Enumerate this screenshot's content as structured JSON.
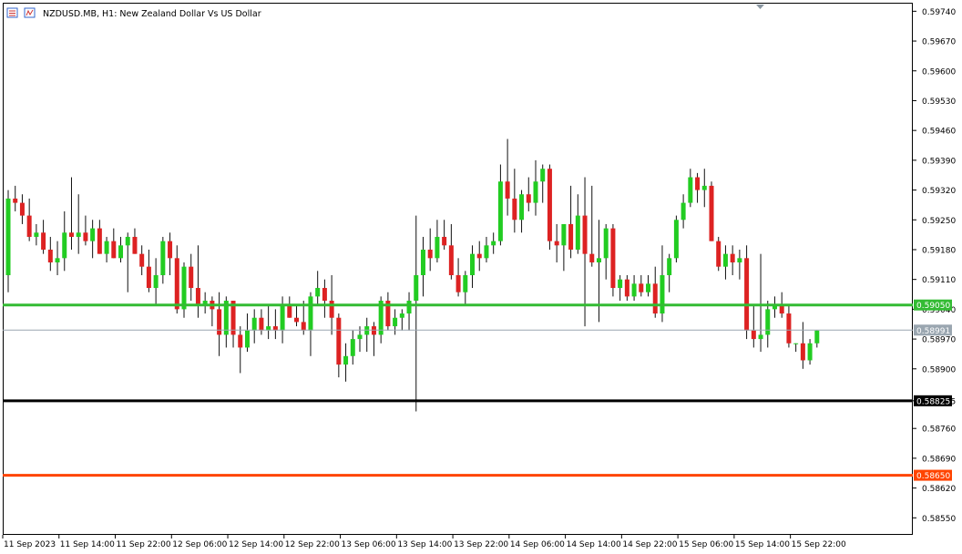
{
  "header": {
    "title": "NZDUSD.MB, H1:  New Zealand Dollar Vs US Dollar",
    "icon": "chart-window-icon"
  },
  "colors": {
    "bull": "#22cc22",
    "bear": "#dd2222",
    "wick": "#111111",
    "grid_border": "#000000",
    "current_price_line": "#9aa6b0",
    "line_green": "#33bb33",
    "line_black": "#000000",
    "line_orange": "#ff4400"
  },
  "chart_data": {
    "type": "candlestick",
    "title": "NZDUSD.MB, H1:  New Zealand Dollar Vs US Dollar",
    "ylim": [
      0.5851,
      0.5976
    ],
    "y_ticks": [
      "0.59740",
      "0.59670",
      "0.59600",
      "0.59530",
      "0.59460",
      "0.59390",
      "0.59320",
      "0.59250",
      "0.59180",
      "0.59110",
      "0.59040",
      "0.58970",
      "0.58900",
      "0.58825",
      "0.58760",
      "0.58690",
      "0.58620",
      "0.58550"
    ],
    "x_labels": [
      "11 Sep 2023",
      "11 Sep 14:00",
      "11 Sep 22:00",
      "12 Sep 06:00",
      "12 Sep 14:00",
      "12 Sep 22:00",
      "13 Sep 06:00",
      "13 Sep 14:00",
      "13 Sep 22:00",
      "14 Sep 06:00",
      "14 Sep 14:00",
      "14 Sep 22:00",
      "15 Sep 06:00",
      "15 Sep 14:00",
      "15 Sep 22:00"
    ],
    "x_label_every": 8,
    "horizontal_lines": [
      {
        "price": 0.5905,
        "label": "0.59050",
        "color": "#33bb33",
        "width": 3
      },
      {
        "price": 0.58991,
        "label": "0.58991",
        "color": "#9aa6b0",
        "width": 1
      },
      {
        "price": 0.58825,
        "label": "0.58825",
        "color": "#000000",
        "width": 3
      },
      {
        "price": 0.5865,
        "label": "0.58650",
        "color": "#ff4400",
        "width": 3
      }
    ],
    "candles": [
      [
        0.5912,
        0.5932,
        0.5908,
        0.593
      ],
      [
        0.593,
        0.5933,
        0.5927,
        0.5929
      ],
      [
        0.5929,
        0.5931,
        0.5924,
        0.5926
      ],
      [
        0.5926,
        0.593,
        0.592,
        0.5921
      ],
      [
        0.5921,
        0.5924,
        0.5919,
        0.5922
      ],
      [
        0.5922,
        0.5925,
        0.5917,
        0.5918
      ],
      [
        0.5918,
        0.5921,
        0.5913,
        0.5915
      ],
      [
        0.5915,
        0.592,
        0.5912,
        0.5916
      ],
      [
        0.5916,
        0.5927,
        0.5913,
        0.5922
      ],
      [
        0.5922,
        0.5935,
        0.5918,
        0.5921
      ],
      [
        0.5921,
        0.5931,
        0.5917,
        0.5922
      ],
      [
        0.5922,
        0.5926,
        0.5919,
        0.592
      ],
      [
        0.592,
        0.5925,
        0.5916,
        0.5923
      ],
      [
        0.5923,
        0.5925,
        0.5917,
        0.5917
      ],
      [
        0.5917,
        0.5921,
        0.5915,
        0.592
      ],
      [
        0.592,
        0.5923,
        0.5916,
        0.5916
      ],
      [
        0.5916,
        0.5921,
        0.5915,
        0.5919
      ],
      [
        0.5919,
        0.5922,
        0.5908,
        0.5921
      ],
      [
        0.5921,
        0.5923,
        0.5917,
        0.5917
      ],
      [
        0.5917,
        0.5919,
        0.5912,
        0.5914
      ],
      [
        0.5914,
        0.5918,
        0.5908,
        0.5909
      ],
      [
        0.5909,
        0.5916,
        0.5905,
        0.5912
      ],
      [
        0.5912,
        0.5921,
        0.591,
        0.592
      ],
      [
        0.592,
        0.5922,
        0.5912,
        0.5916
      ],
      [
        0.5916,
        0.5919,
        0.5903,
        0.5904
      ],
      [
        0.5904,
        0.5915,
        0.5902,
        0.5914
      ],
      [
        0.5914,
        0.5917,
        0.5906,
        0.5909
      ],
      [
        0.5909,
        0.5919,
        0.5902,
        0.5905
      ],
      [
        0.5905,
        0.5908,
        0.5903,
        0.5906
      ],
      [
        0.5906,
        0.5907,
        0.59,
        0.5904
      ],
      [
        0.5904,
        0.5908,
        0.5893,
        0.5898
      ],
      [
        0.5898,
        0.5907,
        0.5895,
        0.5906
      ],
      [
        0.5906,
        0.5906,
        0.5895,
        0.5898
      ],
      [
        0.5898,
        0.59,
        0.5889,
        0.5895
      ],
      [
        0.5895,
        0.5903,
        0.5894,
        0.5899
      ],
      [
        0.5899,
        0.5904,
        0.5896,
        0.5902
      ],
      [
        0.5902,
        0.5904,
        0.5898,
        0.5899
      ],
      [
        0.5899,
        0.5905,
        0.5897,
        0.59
      ],
      [
        0.59,
        0.5904,
        0.5897,
        0.5899
      ],
      [
        0.5899,
        0.5907,
        0.5896,
        0.5905
      ],
      [
        0.5905,
        0.5907,
        0.5902,
        0.5902
      ],
      [
        0.5902,
        0.5905,
        0.59,
        0.5901
      ],
      [
        0.5901,
        0.5906,
        0.5898,
        0.5899
      ],
      [
        0.5899,
        0.5908,
        0.5893,
        0.5907
      ],
      [
        0.5907,
        0.5913,
        0.5905,
        0.5909
      ],
      [
        0.5909,
        0.5911,
        0.5902,
        0.5906
      ],
      [
        0.5906,
        0.5912,
        0.5898,
        0.5902
      ],
      [
        0.5902,
        0.5903,
        0.5888,
        0.5891
      ],
      [
        0.5891,
        0.5896,
        0.5887,
        0.5893
      ],
      [
        0.5893,
        0.5899,
        0.5891,
        0.5897
      ],
      [
        0.5897,
        0.59,
        0.5894,
        0.5898
      ],
      [
        0.5898,
        0.5902,
        0.5894,
        0.59
      ],
      [
        0.59,
        0.5901,
        0.5893,
        0.5898
      ],
      [
        0.5898,
        0.5907,
        0.5896,
        0.5906
      ],
      [
        0.5906,
        0.5908,
        0.5899,
        0.59
      ],
      [
        0.59,
        0.5904,
        0.5898,
        0.5902
      ],
      [
        0.5902,
        0.5904,
        0.5899,
        0.5903
      ],
      [
        0.5903,
        0.5908,
        0.5899,
        0.5906
      ],
      [
        0.5906,
        0.5926,
        0.588,
        0.5912
      ],
      [
        0.5912,
        0.5921,
        0.5907,
        0.5918
      ],
      [
        0.5918,
        0.5923,
        0.5913,
        0.5916
      ],
      [
        0.5916,
        0.5925,
        0.5915,
        0.5921
      ],
      [
        0.5921,
        0.5925,
        0.5918,
        0.5919
      ],
      [
        0.5919,
        0.5924,
        0.5911,
        0.5912
      ],
      [
        0.5912,
        0.5916,
        0.5907,
        0.5908
      ],
      [
        0.5908,
        0.5913,
        0.5905,
        0.5912
      ],
      [
        0.5912,
        0.5919,
        0.5909,
        0.5917
      ],
      [
        0.5917,
        0.592,
        0.5913,
        0.5916
      ],
      [
        0.5916,
        0.5921,
        0.5915,
        0.5919
      ],
      [
        0.5919,
        0.5922,
        0.5917,
        0.592
      ],
      [
        0.592,
        0.5938,
        0.5919,
        0.5934
      ],
      [
        0.5934,
        0.5944,
        0.5926,
        0.593
      ],
      [
        0.593,
        0.5937,
        0.5922,
        0.5925
      ],
      [
        0.5925,
        0.5932,
        0.5922,
        0.5931
      ],
      [
        0.5931,
        0.5935,
        0.5927,
        0.5929
      ],
      [
        0.5929,
        0.5939,
        0.5926,
        0.5934
      ],
      [
        0.5934,
        0.5938,
        0.5929,
        0.5937
      ],
      [
        0.5937,
        0.5938,
        0.5918,
        0.592
      ],
      [
        0.592,
        0.5924,
        0.5915,
        0.5919
      ],
      [
        0.5919,
        0.5923,
        0.5913,
        0.5924
      ],
      [
        0.5924,
        0.5933,
        0.5916,
        0.5918
      ],
      [
        0.5918,
        0.5931,
        0.5917,
        0.5926
      ],
      [
        0.5926,
        0.5935,
        0.59,
        0.5917
      ],
      [
        0.5917,
        0.5933,
        0.5914,
        0.5915
      ],
      [
        0.5915,
        0.5925,
        0.5901,
        0.5916
      ],
      [
        0.5916,
        0.5924,
        0.5911,
        0.5923
      ],
      [
        0.5923,
        0.5924,
        0.5907,
        0.5909
      ],
      [
        0.5909,
        0.5912,
        0.5906,
        0.5911
      ],
      [
        0.5911,
        0.5912,
        0.5906,
        0.5907
      ],
      [
        0.5907,
        0.5912,
        0.5906,
        0.591
      ],
      [
        0.591,
        0.5912,
        0.5907,
        0.5908
      ],
      [
        0.5908,
        0.5912,
        0.5907,
        0.591
      ],
      [
        0.591,
        0.5914,
        0.5902,
        0.5903
      ],
      [
        0.5903,
        0.5919,
        0.5901,
        0.5912
      ],
      [
        0.5912,
        0.5917,
        0.5908,
        0.5916
      ],
      [
        0.5916,
        0.5926,
        0.5915,
        0.5925
      ],
      [
        0.5925,
        0.5931,
        0.5923,
        0.5929
      ],
      [
        0.5929,
        0.5937,
        0.5928,
        0.5935
      ],
      [
        0.5935,
        0.5936,
        0.5929,
        0.5932
      ],
      [
        0.5932,
        0.5937,
        0.5928,
        0.5933
      ],
      [
        0.5933,
        0.5934,
        0.592,
        0.592
      ],
      [
        0.592,
        0.5921,
        0.5913,
        0.5914
      ],
      [
        0.5914,
        0.5919,
        0.5911,
        0.5917
      ],
      [
        0.5917,
        0.5919,
        0.5912,
        0.5915
      ],
      [
        0.5915,
        0.5918,
        0.5911,
        0.5916
      ],
      [
        0.5916,
        0.5919,
        0.5897,
        0.5899
      ],
      [
        0.5899,
        0.5905,
        0.5895,
        0.5897
      ],
      [
        0.5897,
        0.5917,
        0.5894,
        0.5898
      ],
      [
        0.5898,
        0.5906,
        0.5895,
        0.5904
      ],
      [
        0.5904,
        0.5907,
        0.5902,
        0.5905
      ],
      [
        0.5905,
        0.5908,
        0.5902,
        0.5903
      ],
      [
        0.5903,
        0.5905,
        0.5895,
        0.5896
      ],
      [
        0.5896,
        0.5896,
        0.5894,
        0.5896
      ],
      [
        0.5896,
        0.5901,
        0.589,
        0.5892
      ],
      [
        0.5892,
        0.5897,
        0.5891,
        0.5896
      ],
      [
        0.5896,
        0.5899,
        0.5895,
        0.5899
      ]
    ]
  }
}
